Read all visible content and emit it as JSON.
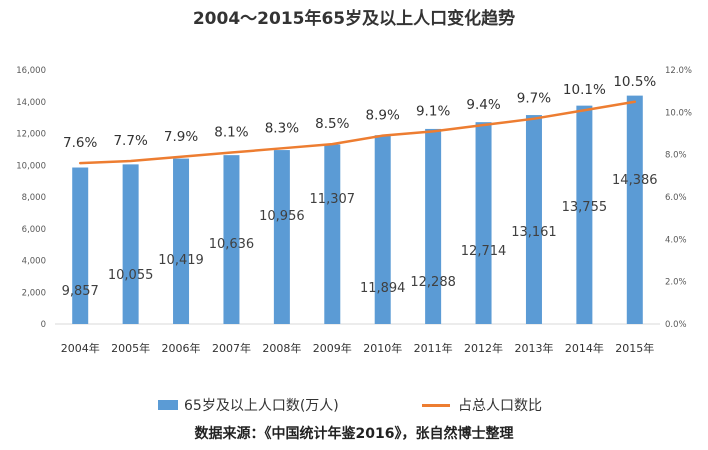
{
  "chart_data": {
    "type": "bar",
    "title": "2004～2015年65岁及以上人口变化趋势",
    "categories": [
      "2004年",
      "2005年",
      "2006年",
      "2007年",
      "2008年",
      "2009年",
      "2010年",
      "2011年",
      "2012年",
      "2013年",
      "2014年",
      "2015年"
    ],
    "series": [
      {
        "name": "65岁及以上人口数(万人)",
        "type": "bar",
        "axis": "left",
        "color": "#5b9bd5",
        "values": [
          9857,
          10055,
          10419,
          10636,
          10956,
          11307,
          11894,
          12288,
          12714,
          13161,
          13755,
          14386
        ],
        "labels": [
          "9,857",
          "10,055",
          "10,419",
          "10,636",
          "10,956",
          "11,307",
          "11,894",
          "12,288",
          "12,714",
          "13,161",
          "13,755",
          "14,386"
        ]
      },
      {
        "name": "占总人口数比",
        "type": "line",
        "axis": "right",
        "color": "#ed7d31",
        "values": [
          7.6,
          7.7,
          7.9,
          8.1,
          8.3,
          8.5,
          8.9,
          9.1,
          9.4,
          9.7,
          10.1,
          10.5
        ],
        "labels": [
          "7.6%",
          "7.7%",
          "7.9%",
          "8.1%",
          "8.3%",
          "8.5%",
          "8.9%",
          "9.1%",
          "9.4%",
          "9.7%",
          "10.1%",
          "10.5%"
        ]
      }
    ],
    "y_left": {
      "ylim": [
        0,
        16000
      ],
      "ticks": [
        0,
        2000,
        4000,
        6000,
        8000,
        10000,
        12000,
        14000,
        16000
      ],
      "tick_labels": [
        "0",
        "2,000",
        "4,000",
        "6,000",
        "8,000",
        "10,000",
        "12,000",
        "14,000",
        "16,000"
      ]
    },
    "y_right": {
      "ylim": [
        0,
        12
      ],
      "ticks": [
        0,
        2,
        4,
        6,
        8,
        10,
        12
      ],
      "tick_labels": [
        "0.0%",
        "2.0%",
        "4.0%",
        "6.0%",
        "8.0%",
        "10.0%",
        "12.0%"
      ]
    },
    "grid": false,
    "legend_position": "bottom"
  },
  "source_note": "数据来源：《中国统计年鉴2016》，张自然博士整理"
}
